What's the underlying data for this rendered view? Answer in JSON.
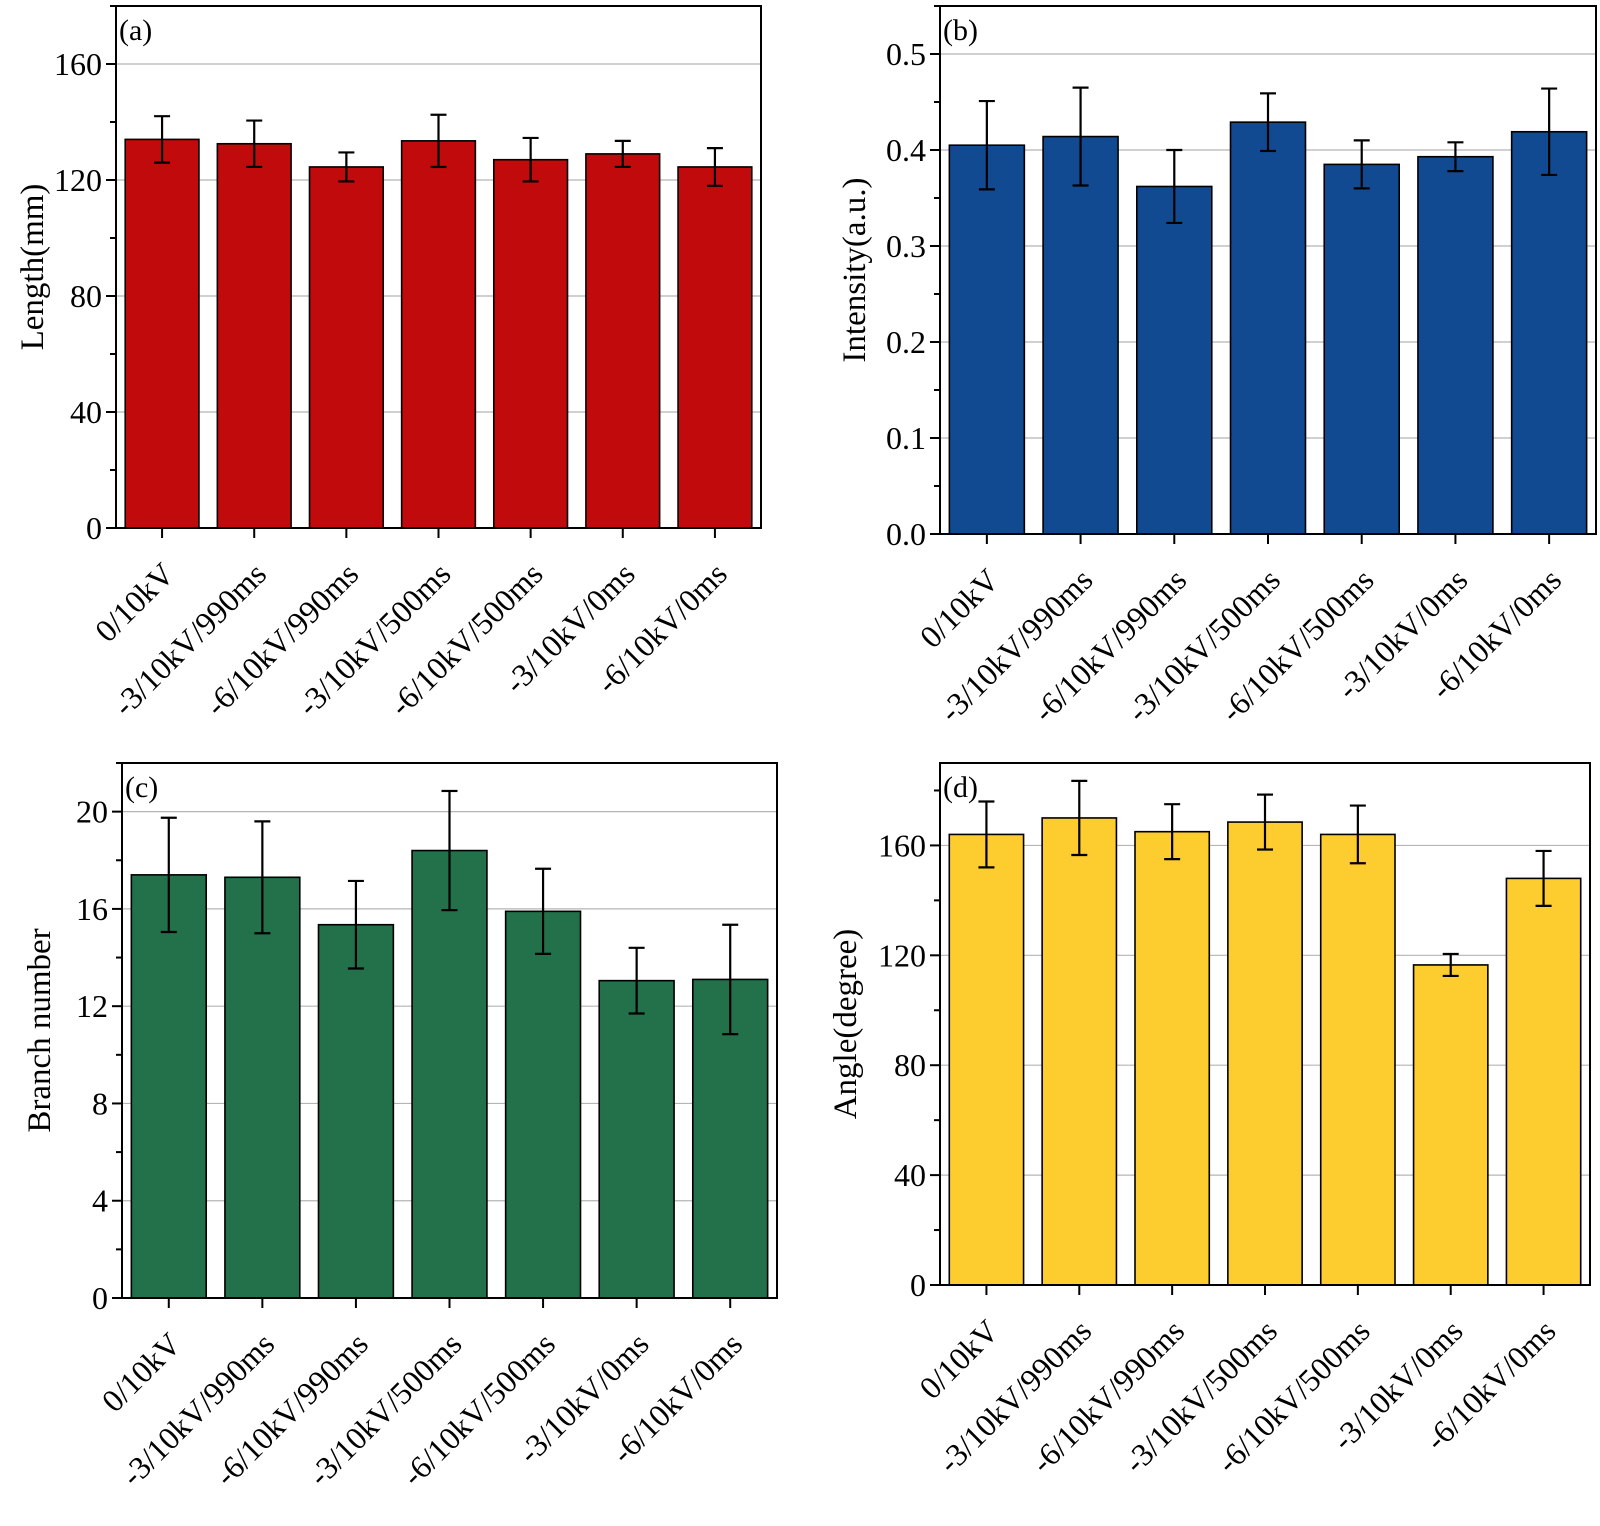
{
  "chart_data": [
    {
      "type": "bar",
      "panel_label": "(a)",
      "categories": [
        "0/10kV",
        "-3/10kV/990ms",
        "-6/10kV/990ms",
        "-3/10kV/500ms",
        "-6/10kV/500ms",
        "-3/10kV/0ms",
        "-6/10kV/0ms"
      ],
      "values": [
        134,
        132.5,
        124.5,
        133.5,
        127,
        129,
        124.5
      ],
      "errors": [
        8,
        8,
        5,
        9,
        7.5,
        4.5,
        6.5
      ],
      "ylabel": "Length(mm)",
      "ylim": [
        0,
        180
      ],
      "yticks": [
        0,
        40,
        80,
        120,
        160
      ],
      "ytick_labels": [
        "0",
        "40",
        "80",
        "120",
        "160"
      ],
      "color": "#C00A0B",
      "grid": true
    },
    {
      "type": "bar",
      "panel_label": "(b)",
      "categories": [
        "0/10kV",
        "-3/10kV/990ms",
        "-6/10kV/990ms",
        "-3/10kV/500ms",
        "-6/10kV/500ms",
        "-3/10kV/0ms",
        "-6/10kV/0ms"
      ],
      "values": [
        0.405,
        0.414,
        0.362,
        0.429,
        0.385,
        0.393,
        0.419
      ],
      "errors": [
        0.046,
        0.051,
        0.038,
        0.03,
        0.025,
        0.015,
        0.045
      ],
      "ylabel": "Intensity(a.u.)",
      "ylim": [
        0,
        0.55
      ],
      "yticks": [
        0,
        0.1,
        0.2,
        0.3,
        0.4,
        0.5
      ],
      "ytick_labels": [
        "0.0",
        "0.1",
        "0.2",
        "0.3",
        "0.4",
        "0.5"
      ],
      "color": "#124A92",
      "grid": true
    },
    {
      "type": "bar",
      "panel_label": "(c)",
      "categories": [
        "0/10kV",
        "-3/10kV/990ms",
        "-6/10kV/990ms",
        "-3/10kV/500ms",
        "-6/10kV/500ms",
        "-3/10kV/0ms",
        "-6/10kV/0ms"
      ],
      "values": [
        17.4,
        17.3,
        15.35,
        18.4,
        15.9,
        13.05,
        13.1
      ],
      "errors": [
        2.35,
        2.3,
        1.8,
        2.45,
        1.75,
        1.35,
        2.25
      ],
      "ylabel": "Branch number",
      "ylim": [
        0,
        22
      ],
      "yticks": [
        0,
        4,
        8,
        12,
        16,
        20
      ],
      "ytick_labels": [
        "0",
        "4",
        "8",
        "12",
        "16",
        "20"
      ],
      "color": "#22714A",
      "grid": true
    },
    {
      "type": "bar",
      "panel_label": "(d)",
      "categories": [
        "0/10kV",
        "-3/10kV/990ms",
        "-6/10kV/990ms",
        "-3/10kV/500ms",
        "-6/10kV/500ms",
        "-3/10kV/0ms",
        "-6/10kV/0ms"
      ],
      "values": [
        164,
        170,
        165,
        168.5,
        164,
        116.5,
        148
      ],
      "errors": [
        12,
        13.5,
        10,
        10,
        10.5,
        4,
        10
      ],
      "ylabel": "Angle(degree)",
      "ylim": [
        0,
        190
      ],
      "yticks": [
        0,
        40,
        80,
        120,
        160
      ],
      "ytick_labels": [
        "0",
        "40",
        "80",
        "120",
        "160"
      ],
      "color": "#FDCC2E",
      "grid": true
    }
  ]
}
